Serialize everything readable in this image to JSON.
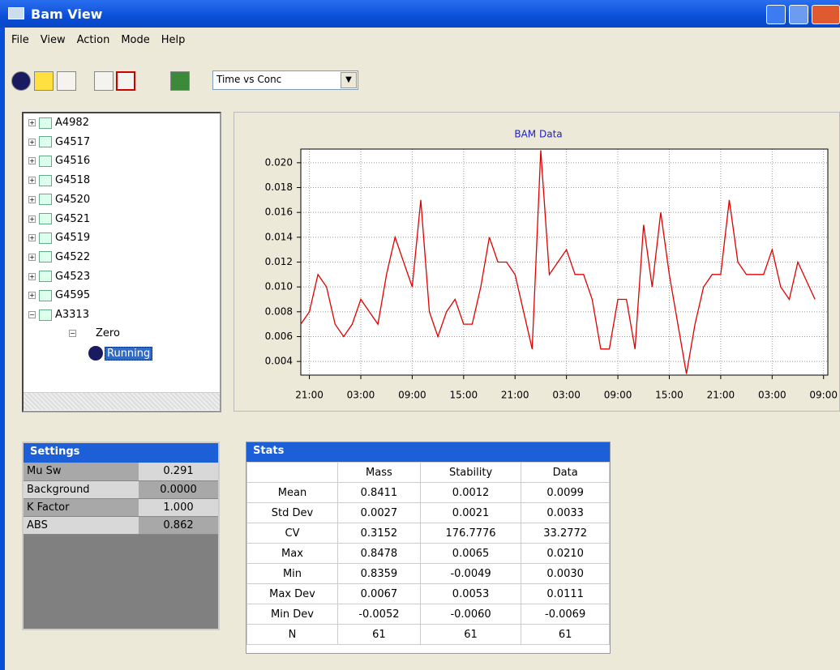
{
  "window": {
    "title": "Bam View"
  },
  "menu": [
    "File",
    "View",
    "Action",
    "Mode",
    "Help"
  ],
  "toolbar": {
    "view_select": "Time vs Conc"
  },
  "tree": {
    "items": [
      "A4982",
      "G4517",
      "G4516",
      "G4518",
      "G4520",
      "G4521",
      "G4519",
      "G4522",
      "G4523",
      "G4595",
      "A3313"
    ],
    "children": [
      "Zero",
      "Running"
    ]
  },
  "chart_data": {
    "type": "line",
    "title": "BAM Data",
    "x": [
      0,
      1,
      2,
      3,
      4,
      5,
      6,
      7,
      8,
      9,
      10,
      11,
      12,
      13,
      14,
      15,
      16,
      17,
      18,
      19,
      20,
      21,
      22,
      23,
      24,
      25,
      26,
      27,
      28,
      29,
      30,
      31,
      32,
      33,
      34,
      35,
      36,
      37,
      38,
      39,
      40,
      41,
      42,
      43,
      44,
      45,
      46,
      47,
      48,
      49,
      50,
      51,
      52,
      53,
      54,
      55,
      56,
      57,
      58,
      59,
      60
    ],
    "series": [
      {
        "name": "Data",
        "color": "#e00000",
        "values": [
          0.007,
          0.008,
          0.011,
          0.01,
          0.007,
          0.006,
          0.007,
          0.009,
          0.008,
          0.007,
          0.011,
          0.014,
          0.012,
          0.01,
          0.017,
          0.008,
          0.006,
          0.008,
          0.009,
          0.007,
          0.007,
          0.01,
          0.014,
          0.012,
          0.012,
          0.011,
          0.008,
          0.005,
          0.021,
          0.011,
          0.012,
          0.013,
          0.011,
          0.011,
          0.009,
          0.005,
          0.005,
          0.009,
          0.009,
          0.005,
          0.015,
          0.01,
          0.016,
          0.011,
          0.007,
          0.003,
          0.007,
          0.01,
          0.011,
          0.011,
          0.017,
          0.012,
          0.011,
          0.011,
          0.011,
          0.013,
          0.01,
          0.009,
          0.012,
          0.0105,
          0.009
        ]
      }
    ],
    "xlim": [
      0,
      61.5
    ],
    "xticks": [
      {
        "value": 1,
        "label": "21:00"
      },
      {
        "value": 7,
        "label": "03:00"
      },
      {
        "value": 13,
        "label": "09:00"
      },
      {
        "value": 19,
        "label": "15:00"
      },
      {
        "value": 25,
        "label": "21:00"
      },
      {
        "value": 31,
        "label": "03:00"
      },
      {
        "value": 37,
        "label": "09:00"
      },
      {
        "value": 43,
        "label": "15:00"
      },
      {
        "value": 49,
        "label": "21:00"
      },
      {
        "value": 55,
        "label": "03:00"
      },
      {
        "value": 61,
        "label": "09:00"
      }
    ],
    "ylim": [
      0.0029,
      0.0211
    ],
    "yticks": [
      0.004,
      0.006,
      0.008,
      {
        "value": 0.01,
        "label": "0.010"
      },
      0.012,
      0.014,
      0.016,
      0.018,
      {
        "value": 0.02,
        "label": "0.020"
      }
    ],
    "grid": true
  },
  "settings": {
    "title": "Settings",
    "rows": [
      [
        "Mu Sw",
        "0.291"
      ],
      [
        "Background",
        "0.0000"
      ],
      [
        "K Factor",
        "1.000"
      ],
      [
        "ABS",
        "0.862"
      ]
    ]
  },
  "stats": {
    "title": "Stats",
    "columns": [
      "Mass",
      "Stability",
      "Data"
    ],
    "rows": [
      [
        "Mean",
        "0.8411",
        "0.0012",
        "0.0099"
      ],
      [
        "Std Dev",
        "0.0027",
        "0.0021",
        "0.0033"
      ],
      [
        "CV",
        "0.3152",
        "176.7776",
        "33.2772"
      ],
      [
        "Max",
        "0.8478",
        "0.0065",
        "0.0210"
      ],
      [
        "Min",
        "0.8359",
        "-0.0049",
        "0.0030"
      ],
      [
        "Max Dev",
        "0.0067",
        "0.0053",
        "0.0111"
      ],
      [
        "Min Dev",
        "-0.0052",
        "-0.0060",
        "-0.0069"
      ],
      [
        "N",
        "61",
        "61",
        "61"
      ]
    ]
  }
}
